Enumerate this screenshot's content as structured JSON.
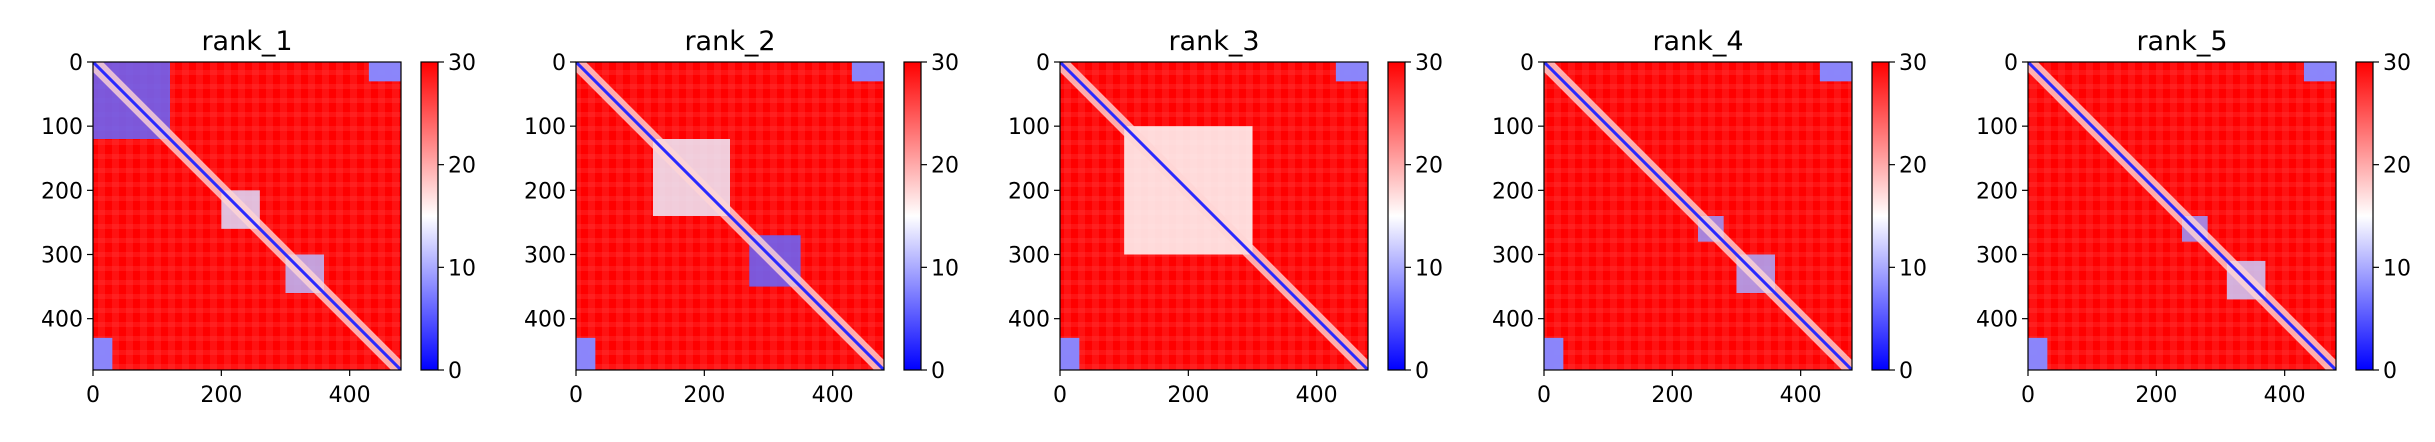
{
  "colors": {
    "low": "#0000ff",
    "mid": "#ffffff",
    "high": "#ff0000",
    "diagonal": "#2a2aff",
    "axis": "#000000",
    "background": "#ffffff"
  },
  "chart_data": [
    {
      "type": "heatmap",
      "title": "rank_1",
      "matrix_size": 480,
      "xlim": [
        0,
        480
      ],
      "ylim": [
        480,
        0
      ],
      "x_ticks": [
        0,
        200,
        400
      ],
      "y_ticks": [
        0,
        100,
        200,
        300,
        400
      ],
      "colorbar": {
        "range": [
          0,
          30
        ],
        "ticks": [
          0,
          10,
          20,
          30
        ],
        "colormap": "bwr"
      },
      "low_distance_regions": [
        {
          "x": [
            0,
            120
          ],
          "y": [
            0,
            120
          ],
          "value": 6
        },
        {
          "x": [
            430,
            480
          ],
          "y": [
            0,
            30
          ],
          "value": 8
        },
        {
          "x": [
            0,
            30
          ],
          "y": [
            430,
            480
          ],
          "value": 8
        },
        {
          "x": [
            300,
            360
          ],
          "y": [
            300,
            360
          ],
          "value": 11
        },
        {
          "x": [
            200,
            260
          ],
          "y": [
            200,
            260
          ],
          "value": 13
        }
      ],
      "grid": false
    },
    {
      "type": "heatmap",
      "title": "rank_2",
      "matrix_size": 480,
      "xlim": [
        0,
        480
      ],
      "ylim": [
        480,
        0
      ],
      "x_ticks": [
        0,
        200,
        400
      ],
      "y_ticks": [
        0,
        100,
        200,
        300,
        400
      ],
      "colorbar": {
        "range": [
          0,
          30
        ],
        "ticks": [
          0,
          10,
          20,
          30
        ],
        "colormap": "bwr"
      },
      "low_distance_regions": [
        {
          "x": [
            270,
            350
          ],
          "y": [
            270,
            350
          ],
          "value": 6
        },
        {
          "x": [
            430,
            480
          ],
          "y": [
            0,
            30
          ],
          "value": 8
        },
        {
          "x": [
            0,
            30
          ],
          "y": [
            430,
            480
          ],
          "value": 8
        },
        {
          "x": [
            120,
            240
          ],
          "y": [
            120,
            240
          ],
          "value": 14
        }
      ],
      "grid": false
    },
    {
      "type": "heatmap",
      "title": "rank_3",
      "matrix_size": 480,
      "xlim": [
        0,
        480
      ],
      "ylim": [
        480,
        0
      ],
      "x_ticks": [
        0,
        200,
        400
      ],
      "y_ticks": [
        0,
        100,
        200,
        300,
        400
      ],
      "colorbar": {
        "range": [
          0,
          30
        ],
        "ticks": [
          0,
          10,
          20,
          30
        ],
        "colormap": "bwr"
      },
      "low_distance_regions": [
        {
          "x": [
            430,
            480
          ],
          "y": [
            0,
            30
          ],
          "value": 8
        },
        {
          "x": [
            0,
            30
          ],
          "y": [
            430,
            480
          ],
          "value": 8
        },
        {
          "x": [
            100,
            300
          ],
          "y": [
            100,
            300
          ],
          "value": 15
        }
      ],
      "grid": false
    },
    {
      "type": "heatmap",
      "title": "rank_4",
      "matrix_size": 480,
      "xlim": [
        0,
        480
      ],
      "ylim": [
        480,
        0
      ],
      "x_ticks": [
        0,
        200,
        400
      ],
      "y_ticks": [
        0,
        100,
        200,
        300,
        400
      ],
      "colorbar": {
        "range": [
          0,
          30
        ],
        "ticks": [
          0,
          10,
          20,
          30
        ],
        "colormap": "bwr"
      },
      "low_distance_regions": [
        {
          "x": [
            430,
            480
          ],
          "y": [
            0,
            30
          ],
          "value": 8
        },
        {
          "x": [
            0,
            30
          ],
          "y": [
            430,
            480
          ],
          "value": 8
        },
        {
          "x": [
            240,
            280
          ],
          "y": [
            240,
            280
          ],
          "value": 9
        },
        {
          "x": [
            300,
            360
          ],
          "y": [
            300,
            360
          ],
          "value": 10
        }
      ],
      "grid": false
    },
    {
      "type": "heatmap",
      "title": "rank_5",
      "matrix_size": 480,
      "xlim": [
        0,
        480
      ],
      "ylim": [
        480,
        0
      ],
      "x_ticks": [
        0,
        200,
        400
      ],
      "y_ticks": [
        0,
        100,
        200,
        300,
        400
      ],
      "colorbar": {
        "range": [
          0,
          30
        ],
        "ticks": [
          0,
          10,
          20,
          30
        ],
        "colormap": "bwr"
      },
      "low_distance_regions": [
        {
          "x": [
            430,
            480
          ],
          "y": [
            0,
            30
          ],
          "value": 8
        },
        {
          "x": [
            0,
            30
          ],
          "y": [
            430,
            480
          ],
          "value": 8
        },
        {
          "x": [
            240,
            280
          ],
          "y": [
            240,
            280
          ],
          "value": 9
        },
        {
          "x": [
            310,
            370
          ],
          "y": [
            310,
            370
          ],
          "value": 12
        }
      ],
      "grid": false
    }
  ]
}
